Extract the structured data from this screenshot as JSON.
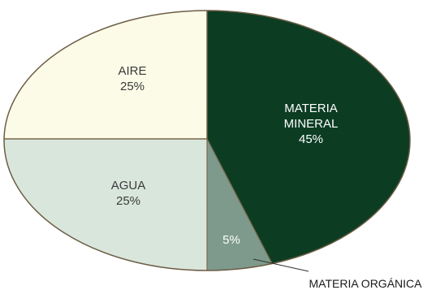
{
  "chart_data": {
    "type": "pie",
    "title": "",
    "slices": [
      {
        "name": "AIRE",
        "value": 25,
        "value_label": "25%",
        "color": "#fbfbe8"
      },
      {
        "name": "MATERIA MINERAL",
        "value": 45,
        "value_label": "45%",
        "color": "#0c3d22"
      },
      {
        "name": "MATERIA ORGÁNICA",
        "value": 5,
        "value_label": "5%",
        "color": "#7e9a8c"
      },
      {
        "name": "AGUA",
        "value": 25,
        "value_label": "25%",
        "color": "#d9e6dc"
      }
    ],
    "legend": "none",
    "edge_color": "#7a6a4f"
  }
}
